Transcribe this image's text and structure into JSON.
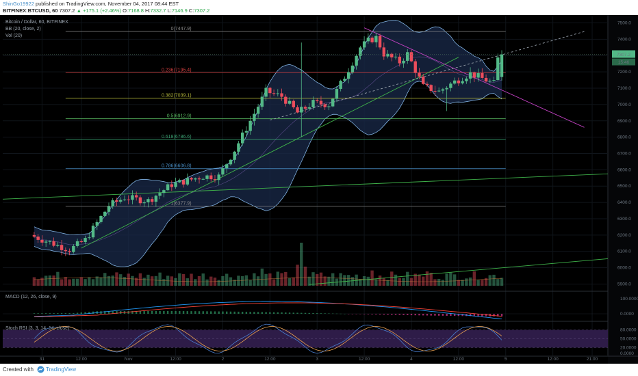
{
  "header": {
    "username": "ShinGo19922",
    "published_text": "published on TradingView.com, November 04, 2017 08:44 EST",
    "symbol": "BITFINEX:BTCUSD, 60",
    "last": "7307.2",
    "change": "▲ +175.1 (+2.46%)",
    "ohlc_label_o": "O:",
    "ohlc_o": "7168.8",
    "ohlc_label_h": "H:",
    "ohlc_h": "7332.7",
    "ohlc_label_l": "L:",
    "ohlc_l": "7146.9",
    "ohlc_label_c": "C:",
    "ohlc_c": "7307.2"
  },
  "footer": {
    "created_with": "Created with",
    "brand": "TradingView"
  },
  "colors": {
    "background": "#000000",
    "up": "#53b987",
    "down": "#eb4d5c",
    "bb_band": "#7fb0e0",
    "bb_fill": "#1a2a4a",
    "macd": "#2196f3",
    "signal": "#f44336",
    "stoch_k": "#4a7fd0",
    "stoch_d": "#e8a050",
    "stoch_bg": "#2e1c48"
  },
  "chart_data": {
    "type": "candlestick",
    "title": "Bitcoin / Dollar, 60, BITFINEX",
    "indicators": [
      "BB (20, close, 2)",
      "Vol (20)"
    ],
    "price_axis": {
      "ticks": [
        5900,
        6000,
        6100,
        6200,
        6300,
        6400,
        6500,
        6600,
        6700,
        6800,
        6900,
        7000,
        7100,
        7200,
        7300,
        7400,
        7500
      ],
      "tick_labels": [
        "5900.0",
        "6000.0",
        "6100.0",
        "6200.0",
        "6300.0",
        "6400.0",
        "6500.0",
        "6600.0",
        "6700.0",
        "6800.0",
        "6900.0",
        "7000.0",
        "7100.0",
        "7200.0",
        "7300.0",
        "7400.0",
        "7500.0"
      ],
      "range": [
        5860,
        7540
      ]
    },
    "time_axis": {
      "labels": [
        "31",
        "12:00",
        "Nov",
        "12:00",
        "2",
        "12:00",
        "3",
        "12:00",
        "4",
        "12:00",
        "5",
        "12:00",
        "21:00"
      ],
      "positions": [
        2,
        12,
        24,
        36,
        48,
        60,
        72,
        84,
        96,
        108,
        120,
        132,
        142
      ],
      "range": [
        -8,
        146
      ]
    },
    "last_price": {
      "label": "7307.2",
      "value": 7307.2
    },
    "timer_label": "15:46",
    "fibonacci": [
      {
        "label": "0(7447.9)",
        "value": 7447.9,
        "color": "#8a8a8a"
      },
      {
        "label": "0.236(7195.4)",
        "value": 7195.4,
        "color": "#d13f3f"
      },
      {
        "label": "0.382(7039.1)",
        "value": 7039.1,
        "color": "#b2b53a"
      },
      {
        "label": "0.5(6912.9)",
        "value": 6912.9,
        "color": "#58b860"
      },
      {
        "label": "0.618(6786.6)",
        "value": 6786.6,
        "color": "#3aa070"
      },
      {
        "label": "0.786(6606.8)",
        "value": 6606.8,
        "color": "#4a90c8"
      },
      {
        "label": "1(6377.9)",
        "value": 6377.9,
        "color": "#8a8a8a"
      }
    ],
    "trendlines": [
      {
        "name": "long-support",
        "color": "#3fb24a",
        "points": [
          [
            -8,
            6420
          ],
          [
            146,
            6575
          ]
        ]
      },
      {
        "name": "rising-support",
        "color": "#3fb24a",
        "points": [
          [
            12,
            6120
          ],
          [
            108,
            7290
          ]
        ]
      },
      {
        "name": "dotted-projection",
        "color": "#9aa3ad",
        "dashed": true,
        "points": [
          [
            60,
            6905
          ],
          [
            140,
            7447
          ]
        ]
      },
      {
        "name": "descending-resistance",
        "color": "#c040c0",
        "points": [
          [
            84,
            7470
          ],
          [
            140,
            6860
          ]
        ]
      },
      {
        "name": "volume-trend",
        "color": "#3fb24a",
        "points": [
          [
            70,
            5910
          ],
          [
            146,
            6120
          ]
        ]
      }
    ],
    "ohlc_anchors": [
      [
        0,
        6200
      ],
      [
        10,
        6110
      ],
      [
        14,
        6170
      ],
      [
        20,
        6380
      ],
      [
        24,
        6430
      ],
      [
        30,
        6410
      ],
      [
        36,
        6510
      ],
      [
        44,
        6560
      ],
      [
        48,
        6560
      ],
      [
        52,
        6720
      ],
      [
        56,
        6900
      ],
      [
        60,
        7080
      ],
      [
        64,
        7050
      ],
      [
        68,
        6950
      ],
      [
        72,
        7010
      ],
      [
        76,
        7000
      ],
      [
        80,
        7170
      ],
      [
        84,
        7350
      ],
      [
        86,
        7390
      ],
      [
        88,
        7410
      ],
      [
        90,
        7310
      ],
      [
        94,
        7260
      ],
      [
        96,
        7310
      ],
      [
        100,
        7110
      ],
      [
        104,
        7080
      ],
      [
        108,
        7140
      ],
      [
        112,
        7190
      ],
      [
        116,
        7150
      ],
      [
        118,
        7130
      ],
      [
        119,
        7280
      ]
    ],
    "candle_count": 120,
    "volume_spikes": {
      "68": 4.5,
      "67": 2.2,
      "69": 2.0,
      "58": 1.8,
      "86": 1.6,
      "100": 1.5
    },
    "macd": {
      "label": "MACD (12, 26, close, 9)",
      "ticks": [
        "100.0000",
        "0.0000"
      ]
    },
    "stoch_rsi": {
      "label": "Stoch RSI (3, 3, 14, 14, close)",
      "ticks": [
        "80.0000",
        "50.0000",
        "20.0000",
        "0.0000"
      ]
    }
  }
}
